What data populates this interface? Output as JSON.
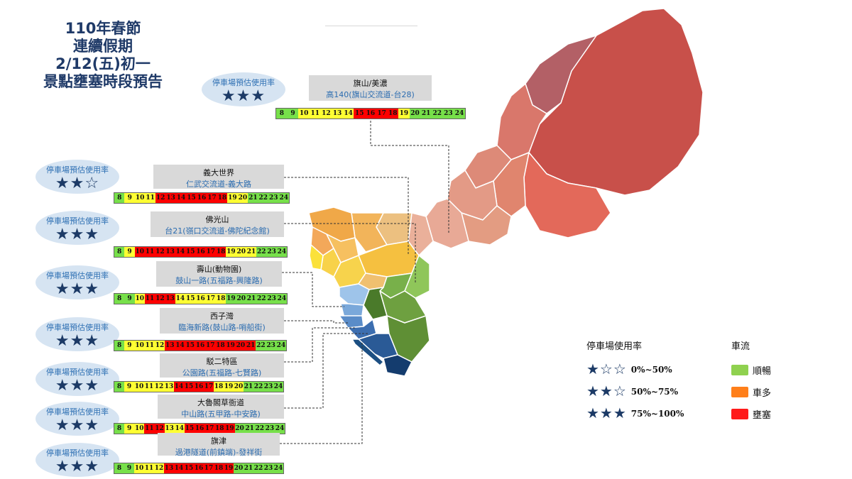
{
  "title": {
    "line1": "110年春節",
    "line2": "連續假期",
    "line3": "2/12(五)初一",
    "line4": "景點壅塞時段預告"
  },
  "colors": {
    "green": "#77e04a",
    "yellow": "#ffff33",
    "red": "#ff0000",
    "orange": "#ff7f1a",
    "star": "#1c3a66"
  },
  "hours": [
    "8",
    "9",
    "10",
    "11",
    "12",
    "13",
    "14",
    "15",
    "16",
    "17",
    "18",
    "19",
    "20",
    "21",
    "22",
    "23",
    "24"
  ],
  "sites": [
    {
      "name": "旗山/美濃",
      "route": "高140(旗山交流道-台28)",
      "parking_label": "停車場預估使用率",
      "stars": "★★★",
      "levels": [
        "g",
        "g",
        "y",
        "y",
        "y",
        "y",
        "y",
        "r",
        "r",
        "r",
        "r",
        "y",
        "g",
        "g",
        "g",
        "g",
        "g"
      ]
    },
    {
      "name": "義大世界",
      "route": "仁武交流道-義大路",
      "parking_label": "停車場預估使用率",
      "stars": "★★☆",
      "levels": [
        "g",
        "y",
        "y",
        "y",
        "r",
        "r",
        "r",
        "r",
        "r",
        "r",
        "r",
        "y",
        "y",
        "g",
        "g",
        "g",
        "g"
      ]
    },
    {
      "name": "佛光山",
      "route": "台21(嶺口交流道-佛陀紀念館)",
      "parking_label": "停車場預估使用率",
      "stars": "★★★",
      "levels": [
        "g",
        "y",
        "r",
        "r",
        "r",
        "r",
        "r",
        "r",
        "r",
        "r",
        "r",
        "y",
        "y",
        "y",
        "g",
        "g",
        "g"
      ]
    },
    {
      "name": "壽山(動物園)",
      "route": "鼓山一路(五福路-興隆路)",
      "parking_label": "停車場預估使用率",
      "stars": "★★★",
      "levels": [
        "g",
        "g",
        "y",
        "r",
        "r",
        "r",
        "y",
        "y",
        "y",
        "y",
        "y",
        "g",
        "g",
        "g",
        "g",
        "g",
        "g"
      ]
    },
    {
      "name": "西子灣",
      "route": "臨海新路(鼓山路-哨船街)",
      "parking_label": "停車場預估使用率",
      "stars": "★★★",
      "levels": [
        "g",
        "y",
        "y",
        "y",
        "y",
        "r",
        "r",
        "r",
        "r",
        "r",
        "r",
        "r",
        "r",
        "r",
        "g",
        "g",
        "g"
      ]
    },
    {
      "name": "駁二特區",
      "route": "公園路(五福路-七賢路)",
      "parking_label": "停車場預估使用率",
      "stars": "★★★",
      "levels": [
        "g",
        "y",
        "y",
        "y",
        "y",
        "y",
        "r",
        "r",
        "r",
        "r",
        "y",
        "y",
        "y",
        "g",
        "g",
        "g",
        "g"
      ]
    },
    {
      "name": "大魯閣草衙道",
      "route": "中山路(五甲路-中安路)",
      "parking_label": "停車場預估使用率",
      "stars": "★★★",
      "levels": [
        "g",
        "y",
        "y",
        "r",
        "r",
        "y",
        "y",
        "r",
        "r",
        "r",
        "r",
        "r",
        "g",
        "g",
        "g",
        "g",
        "g"
      ]
    },
    {
      "name": "旗津",
      "route": "過港隧道(前鎮端)-發祥街",
      "parking_label": "停車場預估使用率",
      "stars": "★★★",
      "levels": [
        "g",
        "g",
        "y",
        "y",
        "y",
        "r",
        "r",
        "r",
        "r",
        "r",
        "r",
        "r",
        "g",
        "g",
        "g",
        "g",
        "g"
      ]
    }
  ],
  "legend": {
    "parking_title": "停車場使用率",
    "traffic_title": "車流",
    "rates": [
      {
        "stars": "★☆☆",
        "range": "0%~50%"
      },
      {
        "stars": "★★☆",
        "range": "50%~75%"
      },
      {
        "stars": "★★★",
        "range": "75%~100%"
      }
    ],
    "flows": [
      {
        "label": "順暢",
        "color": "#8fd14f"
      },
      {
        "label": "車多",
        "color": "#ff7f1a"
      },
      {
        "label": "壅塞",
        "color": "#ff1a1a"
      }
    ]
  }
}
